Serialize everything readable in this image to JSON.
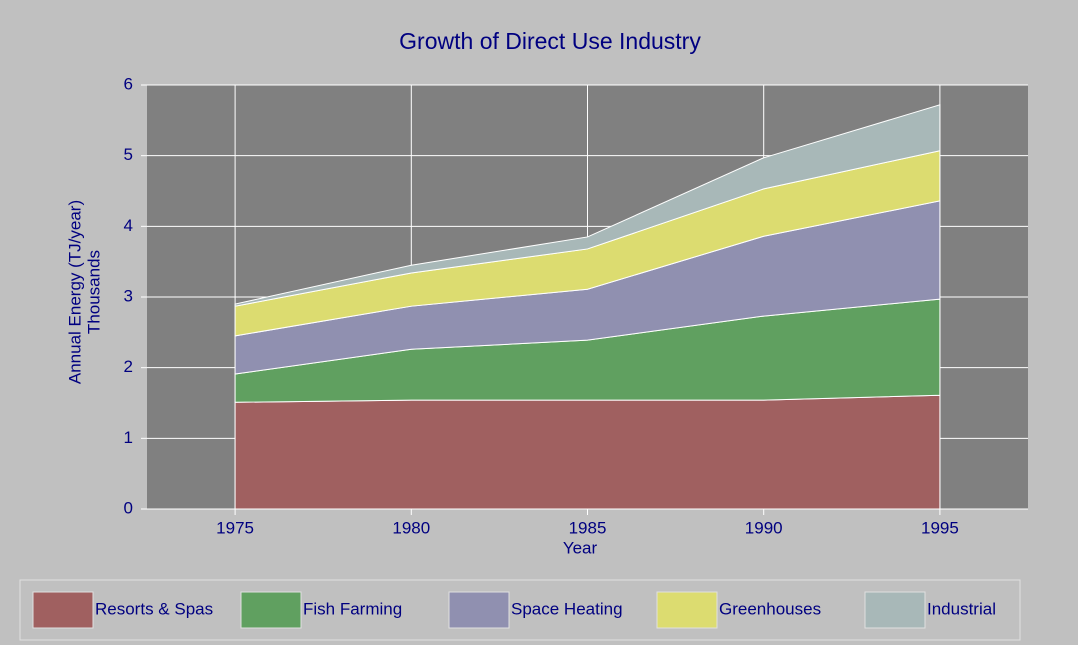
{
  "chart_data": {
    "type": "stacked_area",
    "title": "Growth of Direct Use Industry",
    "xlabel": "Year",
    "ylabel": "Annual Energy (TJ/year)",
    "ylabel_sub": "Thousands",
    "x": [
      1975,
      1980,
      1985,
      1990,
      1995
    ],
    "series": [
      {
        "name": "Resorts & Spas",
        "color": "#a06060",
        "values": [
          1.51,
          1.54,
          1.54,
          1.54,
          1.61
        ]
      },
      {
        "name": "Fish Farming",
        "color": "#60a060",
        "values": [
          0.4,
          0.72,
          0.85,
          1.19,
          1.36
        ]
      },
      {
        "name": "Space Heating",
        "color": "#9090b0",
        "values": [
          0.54,
          0.61,
          0.72,
          1.13,
          1.39
        ]
      },
      {
        "name": "Greenhouses",
        "color": "#dcdc70",
        "values": [
          0.42,
          0.47,
          0.57,
          0.67,
          0.71
        ]
      },
      {
        "name": "Industrial",
        "color": "#a8b8b8",
        "values": [
          0.03,
          0.11,
          0.17,
          0.44,
          0.65
        ]
      }
    ],
    "xlim": [
      1972.5,
      1997.5
    ],
    "xticks": [
      1975,
      1980,
      1985,
      1990,
      1995
    ],
    "ylim": [
      0,
      6
    ],
    "yticks": [
      0,
      1,
      2,
      3,
      4,
      5,
      6
    ],
    "grid": true,
    "legend": "bottom"
  }
}
